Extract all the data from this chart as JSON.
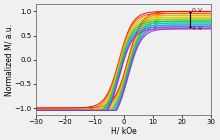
{
  "title": "",
  "xlabel": "H/ kOe",
  "ylabel": "Normalized M/ a.u.",
  "xlim": [
    -30,
    30
  ],
  "ylim": [
    -1.15,
    1.15
  ],
  "xticks": [
    -30,
    -20,
    -10,
    0,
    10,
    20,
    30
  ],
  "yticks": [
    -1.0,
    -0.5,
    0.0,
    0.5,
    1.0
  ],
  "label_0V": "0 V",
  "label_4V": "4 V",
  "n_curves": 10,
  "voltage_colors": [
    "#ee1100",
    "#ff5500",
    "#ffaa00",
    "#ddcc00",
    "#88cc00",
    "#22bb44",
    "#00ccaa",
    "#2299ee",
    "#6655dd",
    "#9933bb"
  ],
  "vertical_offsets": [
    0.0,
    -0.04,
    -0.08,
    -0.12,
    -0.16,
    -0.2,
    -0.24,
    -0.28,
    -0.32,
    -0.36
  ],
  "coercivity": 1.5,
  "steepness": 0.22,
  "background_color": "#f0f0f0",
  "axes_color": "#555555",
  "tick_fontsize": 5,
  "label_fontsize": 5.5,
  "legend_fontsize": 4.5,
  "linewidth": 0.7
}
